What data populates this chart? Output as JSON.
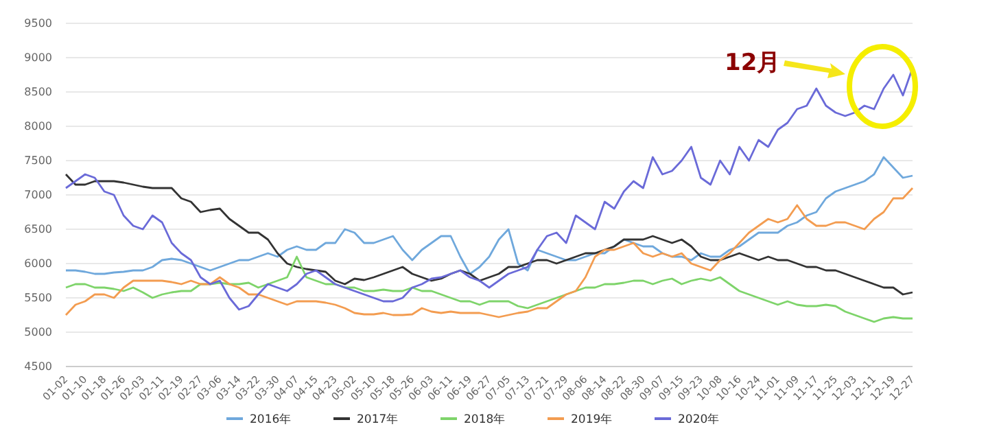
{
  "chart_data": {
    "type": "line",
    "annotations": [
      "12月"
    ],
    "categories": [
      "01-02",
      null,
      "01-10",
      null,
      "01-18",
      null,
      "01-26",
      null,
      "02-03",
      null,
      "02-11",
      null,
      "02-19",
      null,
      "02-27",
      null,
      "03-06",
      null,
      "03-14",
      null,
      "03-22",
      null,
      "03-30",
      null,
      "04-07",
      null,
      "04-15",
      null,
      "04-23",
      null,
      "05-02",
      null,
      "05-10",
      null,
      "05-18",
      null,
      "05-26",
      null,
      "06-03",
      null,
      "06-11",
      null,
      "06-19",
      null,
      "06-27",
      null,
      "07-05",
      null,
      "07-13",
      null,
      "07-21",
      null,
      "07-29",
      null,
      "08-06",
      null,
      "08-14",
      null,
      "08-22",
      null,
      "08-30",
      null,
      "09-07",
      null,
      "09-15",
      null,
      "09-23",
      null,
      "10-08",
      null,
      "10-16",
      null,
      "10-24",
      null,
      "11-01",
      null,
      "11-09",
      null,
      "11-17",
      null,
      "11-25",
      null,
      "12-03",
      null,
      "12-11",
      null,
      "12-19",
      null,
      "12-27"
    ],
    "ylim": [
      4500,
      9500
    ],
    "yticks": [
      4500,
      5000,
      5500,
      6000,
      6500,
      7000,
      7500,
      8000,
      8500,
      9000,
      9500
    ],
    "grid": "y",
    "legend": "bottom",
    "marker": "none",
    "line_style": "solid",
    "series": [
      {
        "name": "2016年",
        "color": "#6fa8dc",
        "values": [
          5900,
          5900,
          5880,
          5850,
          5850,
          5870,
          5880,
          5900,
          5900,
          5950,
          6050,
          6070,
          6050,
          6000,
          5950,
          5900,
          5950,
          6000,
          6050,
          6050,
          6100,
          6150,
          6100,
          6200,
          6250,
          6200,
          6200,
          6300,
          6300,
          6500,
          6450,
          6300,
          6300,
          6350,
          6400,
          6200,
          6050,
          6200,
          6300,
          6400,
          6400,
          6100,
          5850,
          5950,
          6100,
          6350,
          6500,
          6000,
          5900,
          6200,
          6150,
          6100,
          6050,
          6050,
          6100,
          6150,
          6150,
          6250,
          6350,
          6300,
          6250,
          6250,
          6150,
          6100,
          6100,
          6050,
          6150,
          6100,
          6100,
          6200,
          6250,
          6350,
          6450,
          6450,
          6450,
          6550,
          6600,
          6700,
          6750,
          6950,
          7050,
          7100,
          7150,
          7200,
          7300,
          7550,
          7400,
          7250,
          7280
        ]
      },
      {
        "name": "2017年",
        "color": "#333333",
        "values": [
          7300,
          7150,
          7150,
          7200,
          7200,
          7200,
          7180,
          7150,
          7120,
          7100,
          7100,
          7100,
          6950,
          6900,
          6750,
          6780,
          6800,
          6650,
          6550,
          6450,
          6450,
          6350,
          6150,
          6000,
          5950,
          5920,
          5900,
          5880,
          5750,
          5700,
          5780,
          5760,
          5800,
          5850,
          5900,
          5950,
          5850,
          5800,
          5750,
          5780,
          5850,
          5900,
          5850,
          5750,
          5800,
          5850,
          5950,
          5950,
          6000,
          6050,
          6050,
          6000,
          6050,
          6100,
          6150,
          6150,
          6200,
          6250,
          6350,
          6350,
          6350,
          6400,
          6350,
          6300,
          6350,
          6250,
          6100,
          6050,
          6050,
          6100,
          6150,
          6100,
          6050,
          6100,
          6050,
          6050,
          6000,
          5950,
          5950,
          5900,
          5900,
          5850,
          5800,
          5750,
          5700,
          5650,
          5650,
          5550,
          5580
        ]
      },
      {
        "name": "2018年",
        "color": "#7ed46a",
        "values": [
          5650,
          5700,
          5700,
          5650,
          5650,
          5630,
          5600,
          5650,
          5580,
          5500,
          5550,
          5580,
          5600,
          5600,
          5700,
          5700,
          5720,
          5700,
          5700,
          5720,
          5650,
          5700,
          5750,
          5800,
          6100,
          5800,
          5750,
          5700,
          5700,
          5650,
          5650,
          5600,
          5600,
          5620,
          5600,
          5600,
          5650,
          5600,
          5600,
          5550,
          5500,
          5450,
          5450,
          5400,
          5450,
          5450,
          5450,
          5380,
          5350,
          5400,
          5450,
          5500,
          5550,
          5600,
          5650,
          5650,
          5700,
          5700,
          5720,
          5750,
          5750,
          5700,
          5750,
          5780,
          5700,
          5750,
          5780,
          5750,
          5800,
          5700,
          5600,
          5550,
          5500,
          5450,
          5400,
          5450,
          5400,
          5380,
          5380,
          5400,
          5380,
          5300,
          5250,
          5200,
          5150,
          5200,
          5220,
          5200,
          5200
        ]
      },
      {
        "name": "2019年",
        "color": "#f39c50",
        "values": [
          5250,
          5400,
          5450,
          5550,
          5550,
          5500,
          5650,
          5750,
          5750,
          5750,
          5750,
          5730,
          5700,
          5750,
          5700,
          5700,
          5800,
          5700,
          5650,
          5550,
          5550,
          5500,
          5450,
          5400,
          5450,
          5450,
          5450,
          5430,
          5400,
          5350,
          5280,
          5260,
          5260,
          5280,
          5250,
          5250,
          5260,
          5350,
          5300,
          5280,
          5300,
          5280,
          5280,
          5280,
          5250,
          5220,
          5250,
          5280,
          5300,
          5350,
          5350,
          5450,
          5550,
          5600,
          5800,
          6100,
          6200,
          6200,
          6250,
          6300,
          6150,
          6100,
          6150,
          6100,
          6150,
          6000,
          5950,
          5900,
          6050,
          6150,
          6300,
          6450,
          6550,
          6650,
          6600,
          6650,
          6850,
          6650,
          6550,
          6550,
          6600,
          6600,
          6550,
          6500,
          6650,
          6750,
          6950,
          6950,
          7100
        ]
      },
      {
        "name": "2020年",
        "color": "#6a6ad8",
        "values": [
          7100,
          7200,
          7300,
          7250,
          7050,
          7000,
          6700,
          6550,
          6500,
          6700,
          6600,
          6300,
          6150,
          6050,
          5800,
          5700,
          5750,
          5500,
          5330,
          5380,
          5550,
          5700,
          5650,
          5600,
          5700,
          5850,
          5900,
          5800,
          5700,
          5650,
          5600,
          5550,
          5500,
          5450,
          5450,
          5500,
          5650,
          5700,
          5780,
          5800,
          5850,
          5900,
          5800,
          5750,
          5650,
          5750,
          5850,
          5900,
          5950,
          6200,
          6400,
          6450,
          6300,
          6700,
          6600,
          6500,
          6900,
          6800,
          7050,
          7200,
          7100,
          7550,
          7300,
          7350,
          7500,
          7700,
          7250,
          7150,
          7500,
          7300,
          7700,
          7500,
          7800,
          7700,
          7950,
          8050,
          8250,
          8300,
          8550,
          8300,
          8200,
          8150,
          8200,
          8300,
          8250,
          8550,
          8750,
          8450,
          8850
        ]
      }
    ]
  }
}
